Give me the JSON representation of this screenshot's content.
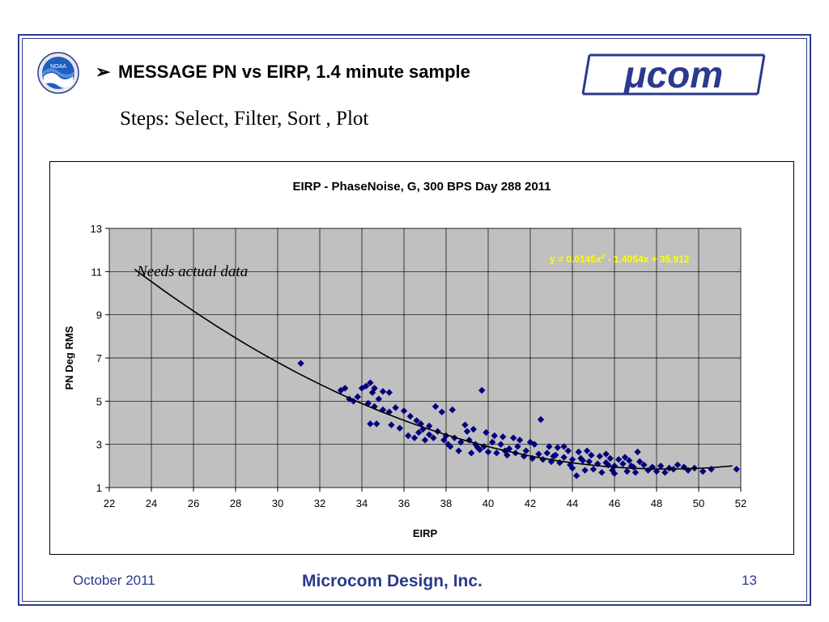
{
  "slide": {
    "title": "MESSAGE PN vs EIRP, 1.4 minute sample",
    "bullet": "➢",
    "steps": "Steps: Select, Filter, Sort , Plot",
    "ucom_logo_text": "μcom",
    "noaa_logo_text": "NOAA"
  },
  "footer": {
    "date": "October 2011",
    "company": "Microcom Design, Inc.",
    "page": "13"
  },
  "colors": {
    "frame": "#2b3a8c",
    "plot_bg": "#c0c0c0",
    "marker": "#000080",
    "trendline": "#000000",
    "equation": "#ffff00",
    "footer_text": "#2b3a8c"
  },
  "chart_data": {
    "type": "scatter",
    "title": "EIRP - PhaseNoise, G, 300 BPS Day 288 2011",
    "xlabel": "EIRP",
    "ylabel": "PN Deg RMS",
    "xlim": [
      22,
      52
    ],
    "ylim": [
      1,
      13
    ],
    "xticks": [
      22,
      24,
      26,
      28,
      30,
      32,
      34,
      36,
      38,
      40,
      42,
      44,
      46,
      48,
      50,
      52
    ],
    "yticks": [
      1,
      3,
      5,
      7,
      9,
      11,
      13
    ],
    "grid": true,
    "legend": "none",
    "annotation": "Needs actual data",
    "trendline": {
      "type": "polynomial",
      "coefficients": [
        0.0145,
        -1.4054,
        35.912
      ],
      "x_range": [
        23.2,
        51.6
      ],
      "equation_label": "y = 0.0145x2 - 1.4054x + 35.912"
    },
    "series": [
      {
        "marker": "diamond",
        "points": [
          [
            31.1,
            6.75
          ],
          [
            33.0,
            5.5
          ],
          [
            33.2,
            5.6
          ],
          [
            33.4,
            5.1
          ],
          [
            33.6,
            5.0
          ],
          [
            33.8,
            5.2
          ],
          [
            34.0,
            5.6
          ],
          [
            34.2,
            5.7
          ],
          [
            34.4,
            5.85
          ],
          [
            34.5,
            5.4
          ],
          [
            34.6,
            5.6
          ],
          [
            34.8,
            5.1
          ],
          [
            35.0,
            5.45
          ],
          [
            35.3,
            5.4
          ],
          [
            34.3,
            4.9
          ],
          [
            34.6,
            4.75
          ],
          [
            35.0,
            4.6
          ],
          [
            35.3,
            4.5
          ],
          [
            35.6,
            4.7
          ],
          [
            36.0,
            4.55
          ],
          [
            36.3,
            4.3
          ],
          [
            36.6,
            4.1
          ],
          [
            34.4,
            3.95
          ],
          [
            34.7,
            3.95
          ],
          [
            35.4,
            3.9
          ],
          [
            35.8,
            3.75
          ],
          [
            36.2,
            3.4
          ],
          [
            36.5,
            3.3
          ],
          [
            36.9,
            3.7
          ],
          [
            37.2,
            3.45
          ],
          [
            37.5,
            4.75
          ],
          [
            37.8,
            4.5
          ],
          [
            38.3,
            4.6
          ],
          [
            38.9,
            3.9
          ],
          [
            39.0,
            3.6
          ],
          [
            39.7,
            5.5
          ],
          [
            36.8,
            3.95
          ],
          [
            37.2,
            3.85
          ],
          [
            37.6,
            3.6
          ],
          [
            38.0,
            3.4
          ],
          [
            38.4,
            3.3
          ],
          [
            38.7,
            3.1
          ],
          [
            39.1,
            3.2
          ],
          [
            39.4,
            3.0
          ],
          [
            39.8,
            2.9
          ],
          [
            40.2,
            3.1
          ],
          [
            40.6,
            3.0
          ],
          [
            41.0,
            2.8
          ],
          [
            41.4,
            2.9
          ],
          [
            41.8,
            2.7
          ],
          [
            42.2,
            3.0
          ],
          [
            42.5,
            4.15
          ],
          [
            42.8,
            2.6
          ],
          [
            43.2,
            2.5
          ],
          [
            43.6,
            2.4
          ],
          [
            44.0,
            2.3
          ],
          [
            44.4,
            2.35
          ],
          [
            44.8,
            2.2
          ],
          [
            45.2,
            2.1
          ],
          [
            45.6,
            2.15
          ],
          [
            46.0,
            2.0
          ],
          [
            46.4,
            2.1
          ],
          [
            46.8,
            2.0
          ],
          [
            47.1,
            2.65
          ],
          [
            47.4,
            2.05
          ],
          [
            47.8,
            1.95
          ],
          [
            48.2,
            2.0
          ],
          [
            48.6,
            1.9
          ],
          [
            49.0,
            2.05
          ],
          [
            49.3,
            1.95
          ],
          [
            49.8,
            1.9
          ],
          [
            50.2,
            1.75
          ],
          [
            50.6,
            1.85
          ],
          [
            51.8,
            1.85
          ],
          [
            44.2,
            1.55
          ],
          [
            44.6,
            1.8
          ],
          [
            45.4,
            1.7
          ],
          [
            45.9,
            1.8
          ],
          [
            46.6,
            1.75
          ],
          [
            47.6,
            1.8
          ],
          [
            48.4,
            1.7
          ],
          [
            40.4,
            2.6
          ],
          [
            40.9,
            2.5
          ],
          [
            41.3,
            2.6
          ],
          [
            41.7,
            2.45
          ],
          [
            42.1,
            2.35
          ],
          [
            42.6,
            2.3
          ],
          [
            43.0,
            2.2
          ],
          [
            43.4,
            2.15
          ],
          [
            43.9,
            2.05
          ],
          [
            38.6,
            2.7
          ],
          [
            39.2,
            2.6
          ],
          [
            39.6,
            2.75
          ],
          [
            40.0,
            2.65
          ],
          [
            38.2,
            2.9
          ],
          [
            37.9,
            3.2
          ],
          [
            37.4,
            3.3
          ],
          [
            36.7,
            3.55
          ],
          [
            41.5,
            3.2
          ],
          [
            42.0,
            3.1
          ],
          [
            42.9,
            2.9
          ],
          [
            43.3,
            2.85
          ],
          [
            43.8,
            2.7
          ],
          [
            44.3,
            2.65
          ],
          [
            44.9,
            2.5
          ],
          [
            45.3,
            2.45
          ],
          [
            45.8,
            2.35
          ],
          [
            46.2,
            2.3
          ],
          [
            46.7,
            2.25
          ],
          [
            47.2,
            2.2
          ],
          [
            40.7,
            3.35
          ],
          [
            41.2,
            3.3
          ],
          [
            39.9,
            3.55
          ],
          [
            39.3,
            3.7
          ],
          [
            40.3,
            3.4
          ],
          [
            43.6,
            2.9
          ],
          [
            44.7,
            2.7
          ],
          [
            45.6,
            2.55
          ],
          [
            46.5,
            2.4
          ],
          [
            44.0,
            1.9
          ],
          [
            45.0,
            1.85
          ],
          [
            46.0,
            1.65
          ],
          [
            47.0,
            1.7
          ],
          [
            48.0,
            1.75
          ],
          [
            49.5,
            1.8
          ],
          [
            37.0,
            3.2
          ],
          [
            38.1,
            3.0
          ],
          [
            39.5,
            2.85
          ],
          [
            40.8,
            2.7
          ],
          [
            42.4,
            2.55
          ],
          [
            43.1,
            2.45
          ],
          [
            44.5,
            2.25
          ],
          [
            45.7,
            2.05
          ],
          [
            46.9,
            1.95
          ],
          [
            48.8,
            1.85
          ]
        ]
      }
    ]
  }
}
